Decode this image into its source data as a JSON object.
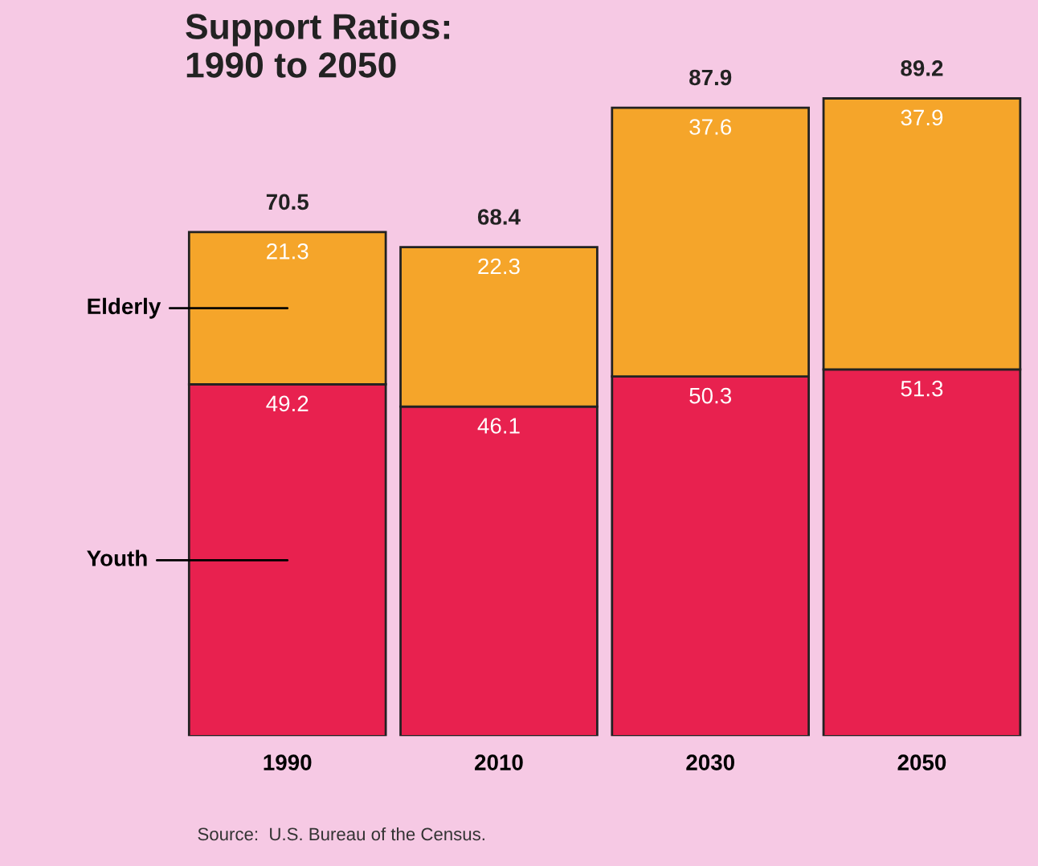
{
  "chart_data": {
    "type": "bar",
    "title": "Support Ratios:\n1990 to 2050",
    "categories": [
      "1990",
      "2010",
      "2030",
      "2050"
    ],
    "stacked": true,
    "data_labels": true,
    "series": [
      {
        "name": "Youth",
        "color": "#e8214f",
        "values": [
          49.2,
          46.1,
          50.3,
          51.3
        ]
      },
      {
        "name": "Elderly",
        "color": "#f5a52a",
        "values": [
          21.3,
          22.3,
          37.6,
          37.9
        ]
      }
    ],
    "totals": [
      "70.5",
      "68.4",
      "87.9",
      "89.2"
    ],
    "annotations": [
      "Source:  U.S. Bureau of the Census."
    ],
    "legend": false,
    "grid": false
  }
}
